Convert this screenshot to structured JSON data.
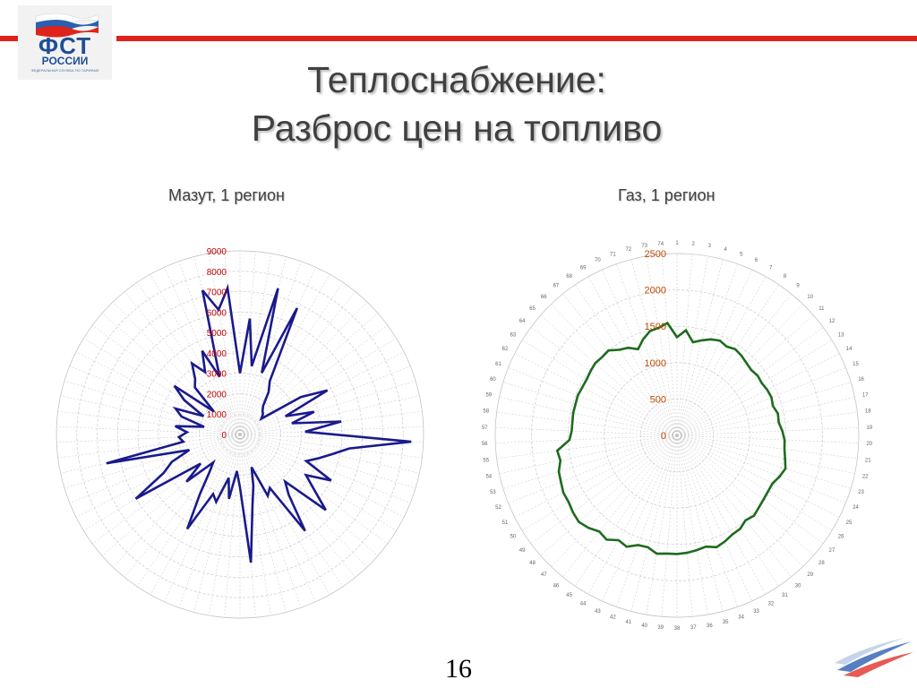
{
  "logo": {
    "main": "ФСТ",
    "sub": "РОССИИ",
    "tiny": "ФЕДЕРАЛЬНАЯ СЛУЖБА ПО ТАРИФАМ"
  },
  "title_line1": "Теплоснабжение:",
  "title_line2": "Разброс цен на топливо",
  "page_number": "16",
  "colors": {
    "accent_red": "#e0231a",
    "mazut_series": "#1a1a8c",
    "gas_series": "#1e6b1e",
    "tick_red": "#c00000",
    "tick_orange": "#c04a00"
  },
  "chart_data": [
    {
      "type": "radar",
      "title": "Мазут, 1 регион",
      "rlim": [
        0,
        9000
      ],
      "r_ticks": [
        "0",
        "1000",
        "2000",
        "3000",
        "4000",
        "5000",
        "6000",
        "7000",
        "8000",
        "9000"
      ],
      "spokes": 74,
      "grid": true,
      "series": [
        {
          "values": [
            3000,
            5700,
            3400,
            7400,
            3200,
            6800,
            3000,
            2500,
            1800,
            1600,
            1500,
            1300,
            3500,
            4800,
            2400,
            3800,
            2600,
            5000,
            3200,
            8400,
            5400,
            4600,
            4000,
            3500,
            5000,
            3800,
            4500,
            5600,
            3200,
            3800,
            5700,
            3000,
            3300,
            1700,
            2600,
            3600,
            6300,
            2600,
            1800,
            3200,
            2200,
            3500,
            3200,
            5300,
            3500,
            2400,
            1900,
            3500,
            2400,
            6000,
            4200,
            3600,
            2600,
            6700,
            2800,
            3000,
            2600,
            3200,
            1800,
            3000,
            3400,
            2000,
            3200,
            4000,
            1700,
            3200,
            3500,
            4200,
            3500,
            4500,
            3000,
            7300,
            6200,
            7200
          ]
        }
      ]
    },
    {
      "type": "radar",
      "title": "Газ, 1 регион",
      "rlim": [
        0,
        2500
      ],
      "r_ticks": [
        "0",
        "500",
        "1000",
        "1500",
        "2000",
        "2500"
      ],
      "category_labels": [
        "1",
        "2",
        "3",
        "4",
        "5",
        "6",
        "7",
        "8",
        "9",
        "10",
        "11",
        "12",
        "13",
        "14",
        "15",
        "16",
        "17",
        "18",
        "19",
        "20",
        "21",
        "22",
        "23",
        "24",
        "25",
        "26",
        "27",
        "28",
        "29",
        "30",
        "31",
        "32",
        "33",
        "34",
        "35",
        "36",
        "37",
        "38",
        "39",
        "40",
        "41",
        "42",
        "43",
        "44",
        "45",
        "46",
        "47",
        "48",
        "49",
        "50",
        "51",
        "52",
        "53",
        "54",
        "55",
        "56",
        "57",
        "58",
        "59",
        "60",
        "61",
        "62",
        "63",
        "64",
        "65",
        "66",
        "67",
        "68",
        "69",
        "70",
        "71",
        "72",
        "73",
        "74"
      ],
      "grid": true,
      "series": [
        {
          "values": [
            1350,
            1450,
            1300,
            1350,
            1400,
            1430,
            1400,
            1430,
            1410,
            1380,
            1360,
            1380,
            1370,
            1390,
            1400,
            1380,
            1420,
            1410,
            1450,
            1480,
            1490,
            1520,
            1560,
            1520,
            1470,
            1470,
            1480,
            1500,
            1530,
            1500,
            1550,
            1560,
            1600,
            1630,
            1580,
            1600,
            1620,
            1630,
            1630,
            1650,
            1590,
            1600,
            1680,
            1650,
            1730,
            1700,
            1760,
            1800,
            1780,
            1750,
            1750,
            1720,
            1700,
            1640,
            1660,
            1480,
            1450,
            1450,
            1460,
            1460,
            1470,
            1460,
            1460,
            1480,
            1500,
            1490,
            1500,
            1420,
            1380,
            1300,
            1400,
            1480,
            1500,
            1550
          ]
        }
      ]
    }
  ]
}
